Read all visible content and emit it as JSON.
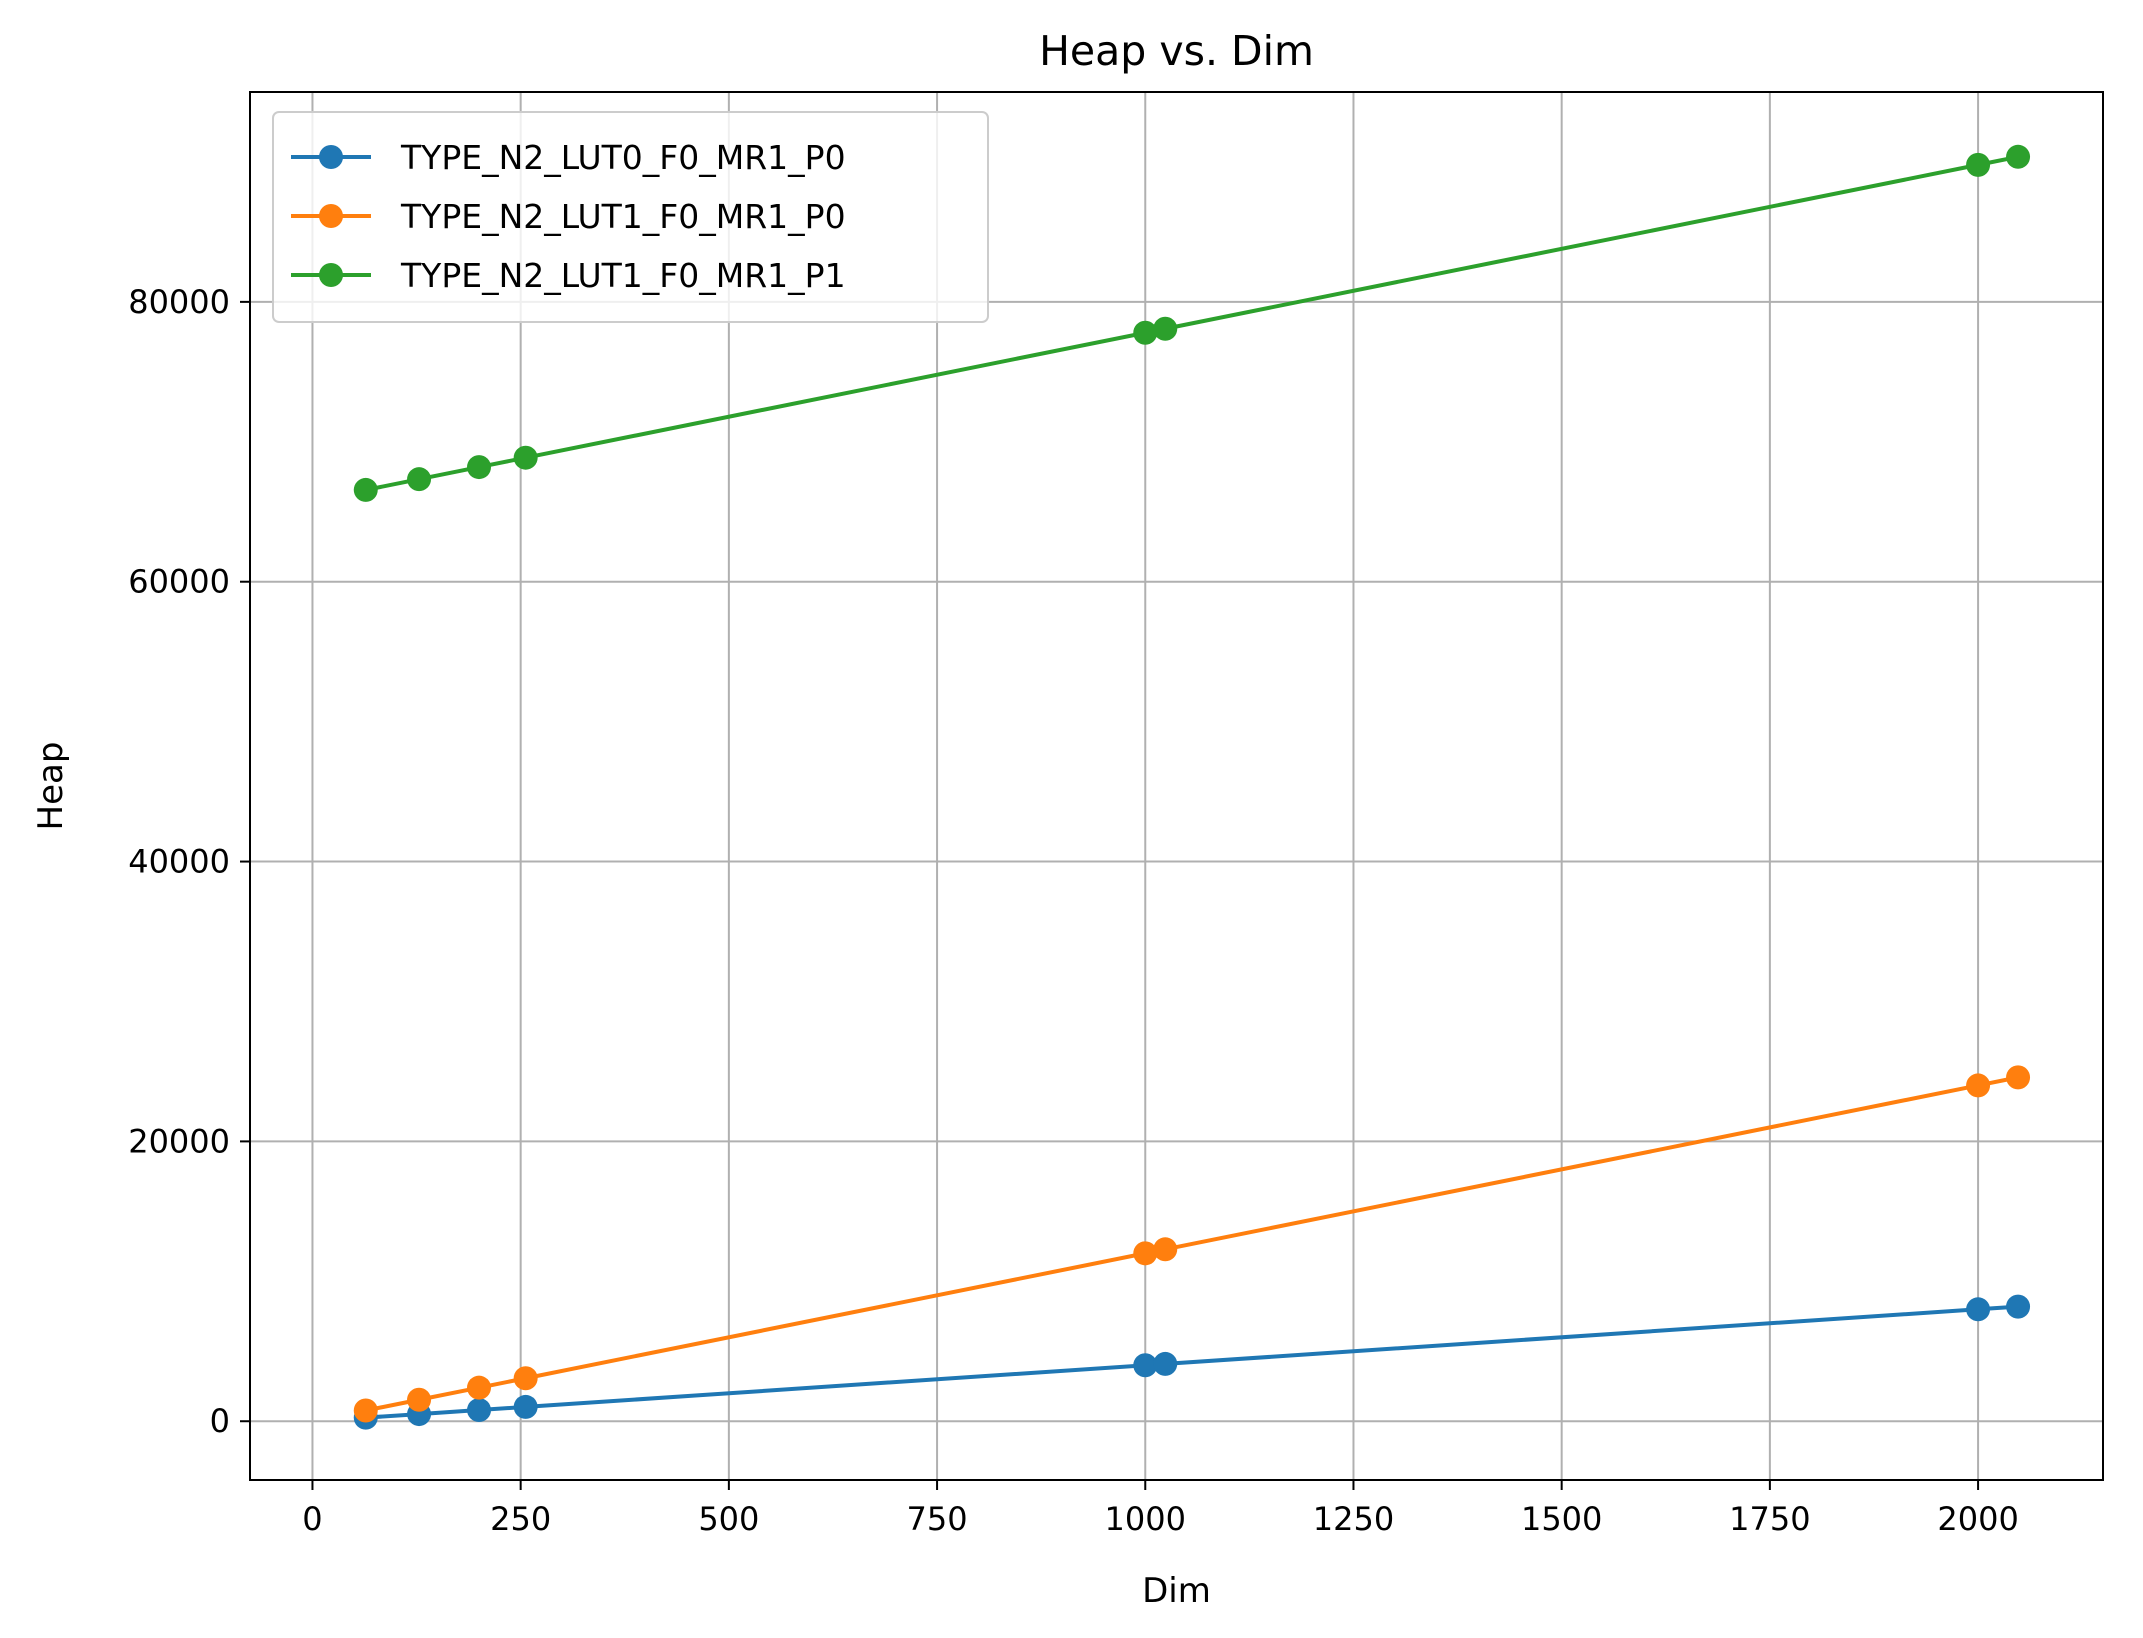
{
  "chart_data": {
    "type": "line",
    "title": "Heap vs. Dim",
    "xlabel": "Dim",
    "ylabel": "Heap",
    "xlim": [
      -75,
      2150
    ],
    "ylim": [
      -4200,
      95000
    ],
    "xticks": [
      0,
      250,
      500,
      750,
      1000,
      1250,
      1500,
      1750,
      2000
    ],
    "yticks": [
      0,
      20000,
      40000,
      60000,
      80000
    ],
    "grid": true,
    "legend_position": "upper-left",
    "x": [
      64,
      128,
      200,
      256,
      1000,
      1024,
      2000,
      2048
    ],
    "series": [
      {
        "name": "TYPE_N2_LUT0_F0_MR1_P0",
        "color": "#1f77b4",
        "values": [
          256,
          512,
          800,
          1024,
          4000,
          4096,
          8000,
          8192
        ]
      },
      {
        "name": "TYPE_N2_LUT1_F0_MR1_P0",
        "color": "#ff7f0e",
        "values": [
          768,
          1536,
          2400,
          3072,
          12000,
          12288,
          24000,
          24576
        ]
      },
      {
        "name": "TYPE_N2_LUT1_F0_MR1_P1",
        "color": "#2ca02c",
        "values": [
          66560,
          67328,
          68192,
          68864,
          77792,
          78080,
          89792,
          90368
        ]
      }
    ]
  }
}
